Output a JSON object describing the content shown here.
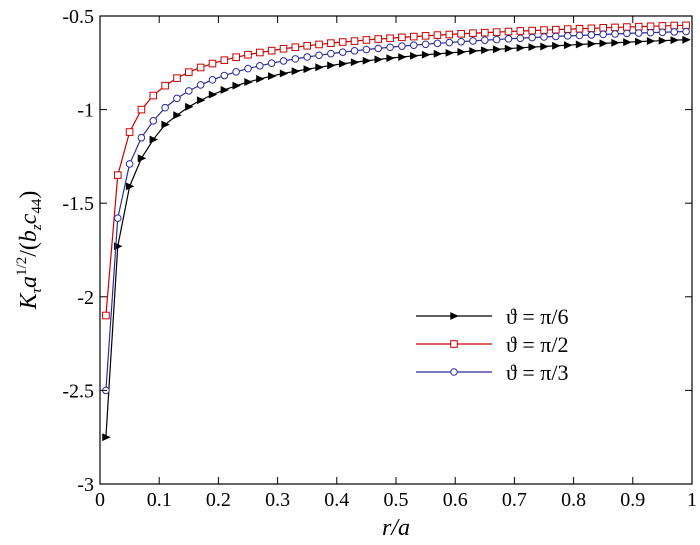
{
  "chart_data": {
    "type": "line",
    "title": "",
    "xlabel": "r/a",
    "ylabel_parts": {
      "k": "K",
      "tau": "τ",
      "a": "a",
      "exp": "1/2",
      "open": "/(",
      "b": "b",
      "z": "z",
      "c": "c",
      "c_sub": "44",
      "close": ")"
    },
    "xlim": [
      0,
      1
    ],
    "ylim": [
      -3,
      -0.5
    ],
    "xticks": [
      0,
      0.1,
      0.2,
      0.3,
      0.4,
      0.5,
      0.6,
      0.7,
      0.8,
      0.9,
      1
    ],
    "xtick_labels": [
      "0",
      "0.1",
      "0.2",
      "0.3",
      "0.4",
      "0.5",
      "0.6",
      "0.7",
      "0.8",
      "0.9",
      "1"
    ],
    "yticks": [
      -3,
      -2.5,
      -2,
      -1.5,
      -1,
      -0.5
    ],
    "ytick_labels": [
      "-3",
      "-2.5",
      "-2",
      "-1.5",
      "-1",
      "-0.5"
    ],
    "grid": false,
    "legend_position": "center-right",
    "x": [
      0.01,
      0.03,
      0.05,
      0.07,
      0.09,
      0.11,
      0.13,
      0.15,
      0.17,
      0.19,
      0.21,
      0.23,
      0.25,
      0.27,
      0.29,
      0.31,
      0.33,
      0.35,
      0.37,
      0.39,
      0.41,
      0.43,
      0.45,
      0.47,
      0.49,
      0.51,
      0.53,
      0.55,
      0.57,
      0.59,
      0.61,
      0.63,
      0.65,
      0.67,
      0.69,
      0.71,
      0.73,
      0.75,
      0.77,
      0.79,
      0.81,
      0.83,
      0.85,
      0.87,
      0.89,
      0.91,
      0.93,
      0.95,
      0.97,
      0.99
    ],
    "series": [
      {
        "name": "ϑ = π/6",
        "color": "#000000",
        "marker": "triangle-right",
        "values": [
          -2.75,
          -1.73,
          -1.41,
          -1.26,
          -1.16,
          -1.08,
          -1.03,
          -0.985,
          -0.95,
          -0.92,
          -0.895,
          -0.872,
          -0.853,
          -0.836,
          -0.821,
          -0.807,
          -0.795,
          -0.784,
          -0.774,
          -0.764,
          -0.755,
          -0.747,
          -0.739,
          -0.732,
          -0.725,
          -0.719,
          -0.713,
          -0.707,
          -0.702,
          -0.697,
          -0.692,
          -0.687,
          -0.683,
          -0.678,
          -0.674,
          -0.67,
          -0.666,
          -0.663,
          -0.659,
          -0.656,
          -0.652,
          -0.649,
          -0.646,
          -0.643,
          -0.64,
          -0.637,
          -0.634,
          -0.632,
          -0.629,
          -0.627
        ]
      },
      {
        "name": "ϑ = π/2",
        "color": "#cc0000",
        "marker": "square",
        "values": [
          -2.1,
          -1.35,
          -1.12,
          -1.0,
          -0.925,
          -0.872,
          -0.832,
          -0.8,
          -0.775,
          -0.754,
          -0.736,
          -0.72,
          -0.707,
          -0.695,
          -0.685,
          -0.675,
          -0.667,
          -0.659,
          -0.652,
          -0.645,
          -0.639,
          -0.634,
          -0.628,
          -0.623,
          -0.619,
          -0.614,
          -0.61,
          -0.606,
          -0.602,
          -0.599,
          -0.595,
          -0.592,
          -0.589,
          -0.586,
          -0.583,
          -0.58,
          -0.578,
          -0.575,
          -0.573,
          -0.57,
          -0.568,
          -0.566,
          -0.563,
          -0.561,
          -0.559,
          -0.557,
          -0.555,
          -0.553,
          -0.551,
          -0.55
        ]
      },
      {
        "name": "ϑ = π/3",
        "color": "#2b2b9a",
        "marker": "circle",
        "values": [
          -2.5,
          -1.58,
          -1.29,
          -1.15,
          -1.06,
          -0.99,
          -0.94,
          -0.9,
          -0.868,
          -0.841,
          -0.818,
          -0.798,
          -0.781,
          -0.766,
          -0.752,
          -0.74,
          -0.729,
          -0.719,
          -0.71,
          -0.701,
          -0.693,
          -0.686,
          -0.679,
          -0.673,
          -0.667,
          -0.661,
          -0.656,
          -0.651,
          -0.646,
          -0.642,
          -0.637,
          -0.633,
          -0.629,
          -0.626,
          -0.622,
          -0.619,
          -0.615,
          -0.612,
          -0.609,
          -0.606,
          -0.604,
          -0.601,
          -0.598,
          -0.596,
          -0.593,
          -0.591,
          -0.589,
          -0.587,
          -0.585,
          -0.583
        ]
      }
    ]
  }
}
